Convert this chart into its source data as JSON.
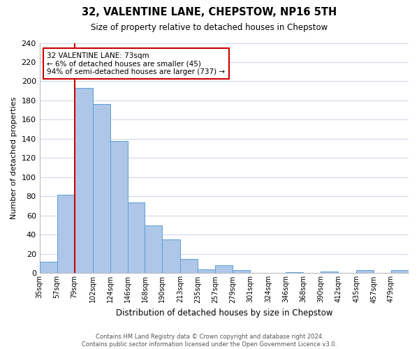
{
  "title": "32, VALENTINE LANE, CHEPSTOW, NP16 5TH",
  "subtitle": "Size of property relative to detached houses in Chepstow",
  "xlabel": "Distribution of detached houses by size in Chepstow",
  "ylabel": "Number of detached properties",
  "bin_labels": [
    "35sqm",
    "57sqm",
    "79sqm",
    "102sqm",
    "124sqm",
    "146sqm",
    "168sqm",
    "190sqm",
    "213sqm",
    "235sqm",
    "257sqm",
    "279sqm",
    "301sqm",
    "324sqm",
    "346sqm",
    "368sqm",
    "390sqm",
    "412sqm",
    "435sqm",
    "457sqm",
    "479sqm"
  ],
  "bar_heights": [
    12,
    82,
    193,
    176,
    138,
    74,
    50,
    35,
    15,
    4,
    8,
    3,
    0,
    0,
    1,
    0,
    2,
    0,
    3,
    0,
    3
  ],
  "bar_color": "#aec6e8",
  "bar_edge_color": "#5a9fd4",
  "bin_edges_values": [
    35,
    57,
    79,
    102,
    124,
    146,
    168,
    190,
    213,
    235,
    257,
    279,
    301,
    324,
    346,
    368,
    390,
    412,
    435,
    457,
    479,
    501
  ],
  "annotation_line1": "32 VALENTINE LANE: 73sqm",
  "annotation_line2": "← 6% of detached houses are smaller (45)",
  "annotation_line3": "94% of semi-detached houses are larger (737) →",
  "annotation_box_color": "#ffffff",
  "annotation_box_edge": "#cc0000",
  "property_line_color": "#cc0000",
  "ylim": [
    0,
    240
  ],
  "yticks": [
    0,
    20,
    40,
    60,
    80,
    100,
    120,
    140,
    160,
    180,
    200,
    220,
    240
  ],
  "background_color": "#ffffff",
  "grid_color": "#d0d8e8",
  "footer_line1": "Contains HM Land Registry data © Crown copyright and database right 2024.",
  "footer_line2": "Contains public sector information licensed under the Open Government Licence v3.0."
}
